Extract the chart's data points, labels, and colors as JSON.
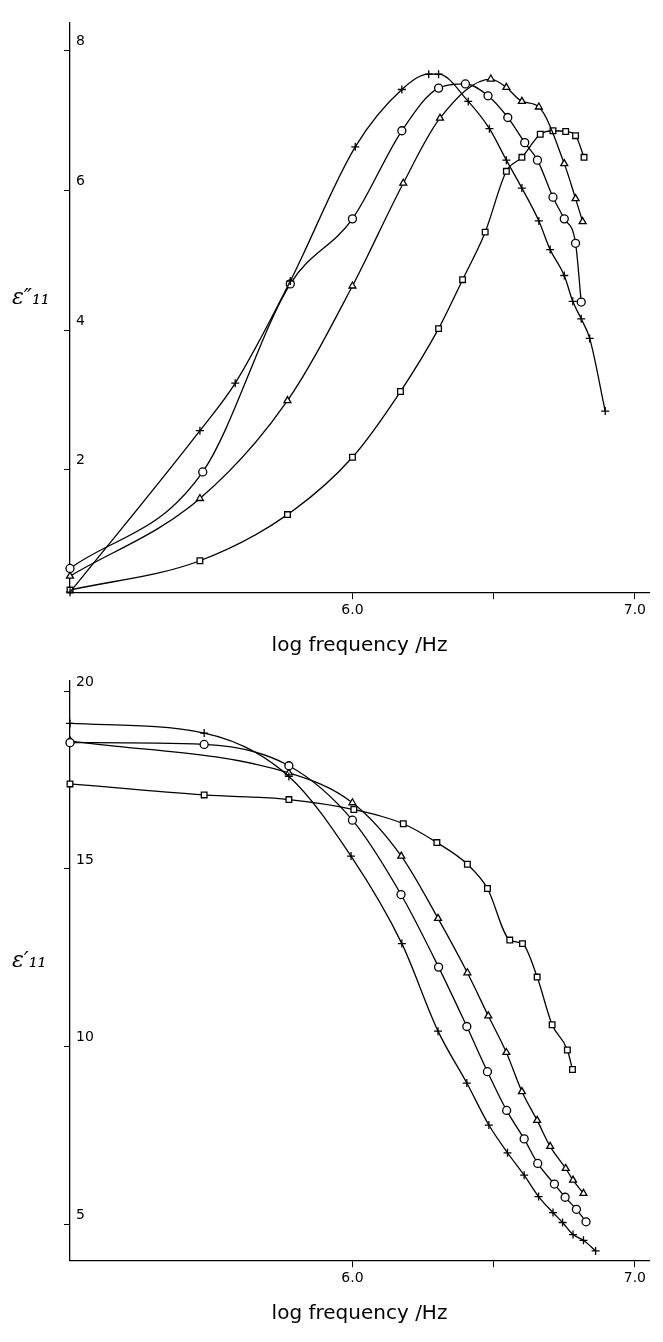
{
  "chart_data": [
    {
      "type": "line",
      "xlabel": "log frequency /Hz",
      "ylabel": "ε″₁₁",
      "xlim": [
        5.0,
        7.05
      ],
      "xticks": [
        {
          "value": 6.0,
          "label": "6.0"
        },
        {
          "value": 6.5,
          "label": null
        },
        {
          "value": 7.0,
          "label": "7.0"
        }
      ],
      "ylim": [
        0.25,
        8.4
      ],
      "yticks": [
        2,
        4,
        6,
        8
      ],
      "series": [
        {
          "color": "#000000",
          "marker": "cross",
          "x": [
            5.0,
            5.46,
            5.585,
            5.78,
            6.01,
            6.175,
            6.27,
            6.305,
            6.41,
            6.485,
            6.545,
            6.6,
            6.66,
            6.7,
            6.75,
            6.78,
            6.81,
            6.84,
            6.895
          ],
          "values": [
            0.25,
            2.56,
            3.24,
            4.7,
            6.62,
            7.44,
            7.66,
            7.66,
            7.27,
            6.88,
            6.43,
            6.03,
            5.56,
            5.15,
            4.78,
            4.41,
            4.16,
            3.88,
            2.84
          ]
        },
        {
          "color": "#000000",
          "marker": "circle",
          "x": [
            5.0,
            5.47,
            5.78,
            6.0,
            6.175,
            6.305,
            6.4,
            6.48,
            6.55,
            6.61,
            6.655,
            6.71,
            6.75,
            6.79,
            6.81
          ],
          "values": [
            0.59,
            1.97,
            4.66,
            5.59,
            6.85,
            7.46,
            7.52,
            7.35,
            7.04,
            6.68,
            6.43,
            5.9,
            5.59,
            5.24,
            4.4
          ]
        },
        {
          "color": "#000000",
          "marker": "triangle",
          "x": [
            5.0,
            5.46,
            5.77,
            6.0,
            6.18,
            6.31,
            6.49,
            6.545,
            6.6,
            6.66,
            6.75,
            6.79,
            6.815
          ],
          "values": [
            0.48,
            1.59,
            2.99,
            4.63,
            6.1,
            7.03,
            7.59,
            7.47,
            7.27,
            7.19,
            6.38,
            5.88,
            5.55
          ]
        },
        {
          "color": "#000000",
          "marker": "square",
          "x": [
            5.0,
            5.46,
            5.77,
            6.0,
            6.17,
            6.305,
            6.39,
            6.47,
            6.545,
            6.6,
            6.665,
            6.71,
            6.755,
            6.79,
            6.82
          ],
          "values": [
            0.28,
            0.7,
            1.36,
            2.18,
            3.12,
            4.02,
            4.72,
            5.4,
            6.27,
            6.47,
            6.8,
            6.85,
            6.84,
            6.78,
            6.47
          ]
        }
      ]
    },
    {
      "type": "line",
      "xlabel": "log frequency /Hz",
      "ylabel": "ε′₁₁",
      "xlim": [
        5.0,
        7.05
      ],
      "xticks": [
        {
          "value": 6.0,
          "label": "6.0"
        },
        {
          "value": 6.5,
          "label": null
        },
        {
          "value": 7.0,
          "label": "7.0"
        }
      ],
      "ylim": [
        4.0,
        20.3
      ],
      "yticks": [
        5,
        10,
        15,
        20
      ],
      "series": [
        {
          "color": "#000000",
          "marker": "cross",
          "x": [
            5.0,
            5.475,
            5.775,
            5.995,
            6.175,
            6.303,
            6.405,
            6.483,
            6.549,
            6.608,
            6.659,
            6.71,
            6.744,
            6.781,
            6.818,
            6.861
          ],
          "values": [
            19.09,
            18.82,
            17.6,
            15.36,
            12.9,
            10.44,
            8.98,
            7.8,
            7.02,
            6.39,
            5.79,
            5.34,
            5.06,
            4.72,
            4.56,
            4.26
          ]
        },
        {
          "color": "#000000",
          "marker": "circle",
          "x": [
            5.0,
            5.475,
            5.775,
            6.0,
            6.172,
            6.305,
            6.405,
            6.478,
            6.546,
            6.608,
            6.656,
            6.715,
            6.753,
            6.793,
            6.827
          ],
          "values": [
            18.55,
            18.5,
            17.9,
            16.37,
            14.28,
            12.24,
            10.57,
            9.3,
            8.21,
            7.41,
            6.72,
            6.14,
            5.77,
            5.43,
            5.08
          ]
        },
        {
          "color": "#000000",
          "marker": "triangle",
          "x": [
            5.0,
            5.475,
            5.775,
            6.0,
            6.173,
            6.303,
            6.407,
            6.481,
            6.545,
            6.6,
            6.654,
            6.7,
            6.755,
            6.781,
            6.818
          ],
          "values": [
            18.6,
            null,
            17.7,
            16.86,
            15.36,
            13.61,
            12.08,
            10.87,
            9.84,
            8.74,
            7.93,
            7.2,
            6.58,
            6.25,
            5.88
          ]
        },
        {
          "color": "#000000",
          "marker": "square",
          "x": [
            5.0,
            5.475,
            5.775,
            6.005,
            6.18,
            6.299,
            6.407,
            6.478,
            6.557,
            6.602,
            6.654,
            6.707,
            6.761,
            6.779
          ],
          "values": [
            17.39,
            17.08,
            16.95,
            16.67,
            16.27,
            15.74,
            15.13,
            14.45,
            13.0,
            12.9,
            11.96,
            10.62,
            9.91,
            9.36
          ]
        }
      ]
    }
  ]
}
